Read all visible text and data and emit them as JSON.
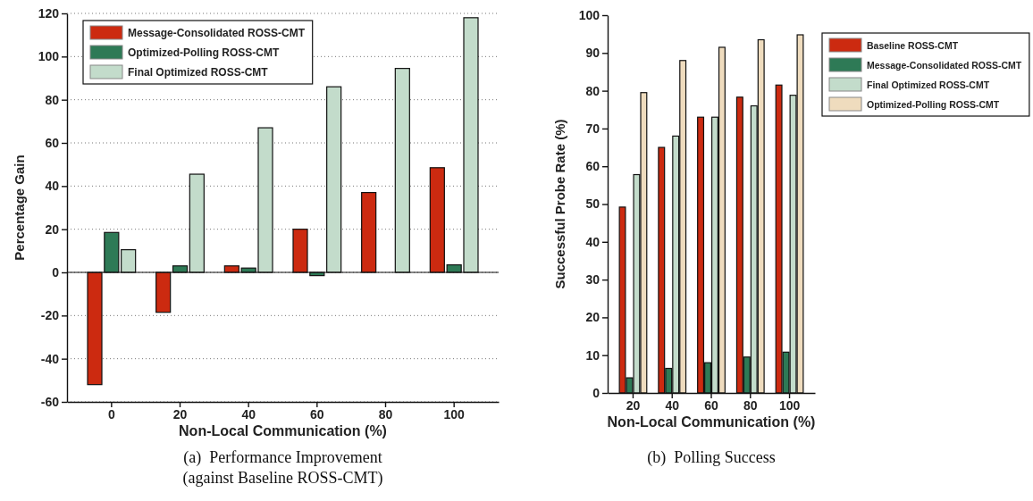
{
  "chart_data": [
    {
      "type": "bar",
      "xlabel": "Non-Local Communication (%)",
      "ylabel": "Percentage Gain",
      "categories": [
        "0",
        "20",
        "40",
        "60",
        "80",
        "100"
      ],
      "series": [
        {
          "name": "Message-Consolidated ROSS-CMT",
          "color": "#cc2a10",
          "values": [
            -52,
            -18.5,
            3,
            20,
            37,
            48.5
          ]
        },
        {
          "name": "Optimized-Polling ROSS-CMT",
          "color": "#2e7a56",
          "values": [
            18.5,
            3,
            2,
            -1.5,
            0,
            3.5
          ]
        },
        {
          "name": "Final Optimized ROSS-CMT",
          "color": "#c3dccb",
          "values": [
            10.5,
            45.5,
            67,
            86,
            94.5,
            118
          ]
        }
      ],
      "ylim": [
        -60,
        120
      ],
      "yticks": [
        -60,
        -40,
        -20,
        0,
        20,
        40,
        60,
        80,
        100,
        120
      ],
      "grid": "y",
      "legend": "top left",
      "annotations": [
        "(a)  Performance Improvement (against Baseline ROSS-CMT)"
      ]
    },
    {
      "type": "bar",
      "xlabel": "Non-Local Communication (%)",
      "ylabel": "Successful Probe Rate (%)",
      "categories": [
        "20",
        "40",
        "60",
        "80",
        "100"
      ],
      "series": [
        {
          "name": "Baseline ROSS-CMT",
          "color": "#cc2a10",
          "values": [
            49.2,
            65,
            73,
            78.3,
            81.5
          ]
        },
        {
          "name": "Message-Consolidated ROSS-CMT",
          "color": "#2e7a56",
          "values": [
            4,
            6.5,
            8,
            9.5,
            10.8
          ]
        },
        {
          "name": "Final Optimized ROSS-CMT",
          "color": "#c3dccb",
          "values": [
            57.8,
            68,
            73,
            76,
            78.8
          ]
        },
        {
          "name": "Optimized-Polling ROSS-CMT",
          "color": "#efdcbe",
          "values": [
            79.5,
            88,
            91.5,
            93.5,
            94.8
          ]
        }
      ],
      "ylim": [
        0,
        100
      ],
      "yticks": [
        0,
        10,
        20,
        30,
        40,
        50,
        60,
        70,
        80,
        90,
        100
      ],
      "grid": false,
      "legend": "right",
      "annotations": [
        "(b)  Polling Success"
      ]
    }
  ]
}
